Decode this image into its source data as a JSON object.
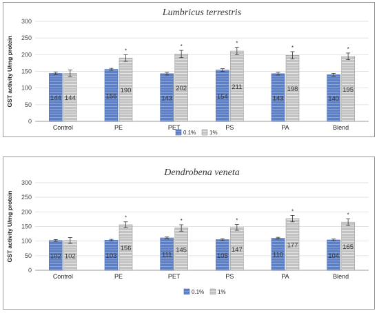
{
  "chart_data": [
    {
      "type": "bar",
      "title": "Lumbricus terrestris",
      "ylabel": "GST activity U/mg protein",
      "xlabel": "",
      "ylim": [
        0,
        300
      ],
      "yticks": [
        0,
        50,
        100,
        150,
        200,
        250,
        300
      ],
      "categories": [
        "Control",
        "PE",
        "PET",
        "PS",
        "PA",
        "Blend"
      ],
      "series": [
        {
          "name": "0.1%",
          "color": "#5b7fc8",
          "values": [
            144,
            156,
            143,
            154,
            143,
            140
          ],
          "errors": [
            4,
            3,
            4,
            4,
            4,
            4
          ],
          "marks": [
            "",
            "",
            "",
            "",
            "",
            ""
          ]
        },
        {
          "name": "1%",
          "color": "#b4b4b4",
          "values": [
            144,
            190,
            202,
            211,
            198,
            195
          ],
          "errors": [
            10,
            10,
            11,
            11,
            11,
            10
          ],
          "marks": [
            "",
            "*",
            "*",
            "*",
            "*",
            "*"
          ]
        }
      ],
      "legend_position": "bottom-center",
      "grid": true
    },
    {
      "type": "bar",
      "title": "Dendrobena veneta",
      "ylabel": "GST activity U/mg protein",
      "xlabel": "",
      "ylim": [
        0,
        300
      ],
      "yticks": [
        0,
        50,
        100,
        150,
        200,
        250,
        300
      ],
      "categories": [
        "Control",
        "PE",
        "PET",
        "PS",
        "PA",
        "Blend"
      ],
      "series": [
        {
          "name": "0.1%",
          "color": "#5b7fc8",
          "values": [
            102,
            103,
            111,
            105,
            110,
            104
          ],
          "errors": [
            3,
            3,
            3,
            3,
            3,
            3
          ],
          "marks": [
            "",
            "",
            "",
            "",
            "",
            ""
          ]
        },
        {
          "name": "1%",
          "color": "#b4b4b4",
          "values": [
            102,
            156,
            145,
            147,
            177,
            165
          ],
          "errors": [
            10,
            10,
            11,
            10,
            11,
            11
          ],
          "marks": [
            "",
            "*",
            "*",
            "*",
            "*",
            "*"
          ]
        }
      ],
      "legend_position": "bottom-center",
      "grid": true
    }
  ]
}
